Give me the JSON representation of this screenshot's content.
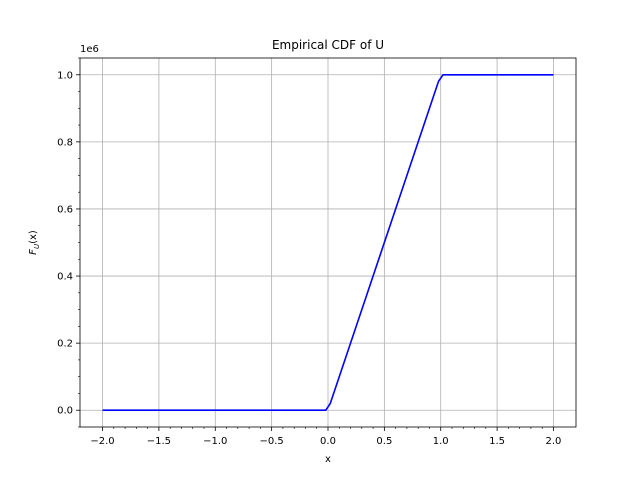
{
  "chart_data": {
    "type": "line",
    "title": "Empirical CDF of U",
    "xlabel": "x",
    "ylabel": "F_U(x)",
    "ylabel_main": "F",
    "ylabel_sub": "U",
    "ylabel_rest": "(x)",
    "offset_text": "1e6",
    "xlim": [
      -2.2,
      2.2
    ],
    "ylim": [
      -50000,
      1050000
    ],
    "x_ticks": [
      -2.0,
      -1.5,
      -1.0,
      -0.5,
      0.0,
      0.5,
      1.0,
      1.5,
      2.0
    ],
    "x_tick_labels": [
      "−2.0",
      "−1.5",
      "−1.0",
      "−0.5",
      "0.0",
      "0.5",
      "1.0",
      "1.5",
      "2.0"
    ],
    "y_ticks": [
      0,
      200000,
      400000,
      600000,
      800000,
      1000000
    ],
    "y_tick_labels": [
      "0.0",
      "0.2",
      "0.4",
      "0.6",
      "0.8",
      "1.0"
    ],
    "grid": true,
    "series": [
      {
        "color": "#0000ff",
        "x": [
          -2.0,
          -0.02,
          0.02,
          0.98,
          1.02,
          2.0
        ],
        "y": [
          0,
          0,
          20000,
          980000,
          1000000,
          1000000
        ]
      }
    ]
  }
}
